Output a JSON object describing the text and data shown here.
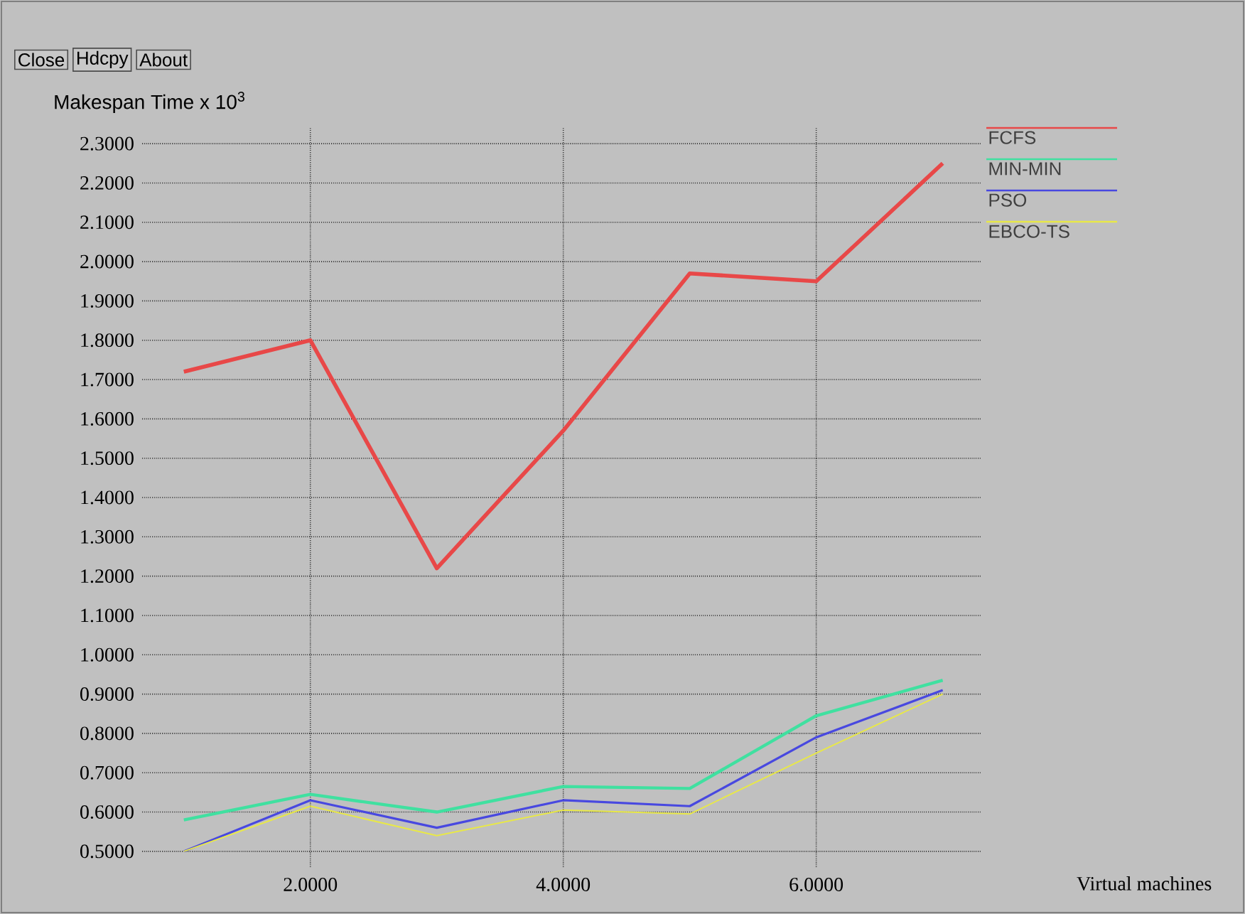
{
  "chart_data": {
    "type": "line",
    "ylabel": "Makespan Time x 10$^{3}$",
    "xlabel": "Virtual machines",
    "annotations": [
      "Close",
      "Hdcpy",
      "About"
    ],
    "x": [
      1,
      2,
      3,
      4,
      5,
      6,
      7
    ],
    "series": [
      {
        "name": "FCFS",
        "color": "#e84848",
        "values": [
          1.72,
          1.8,
          1.22,
          1.57,
          1.97,
          1.95,
          2.25
        ]
      },
      {
        "name": "MIN-MIN",
        "color": "#40e0a0",
        "values": [
          0.58,
          0.645,
          0.6,
          0.665,
          0.66,
          0.845,
          0.935
        ]
      },
      {
        "name": "PSO",
        "color": "#4848e0",
        "values": [
          0.5,
          0.63,
          0.56,
          0.63,
          0.615,
          0.79,
          0.91
        ]
      },
      {
        "name": "EBCO-TS",
        "color": "#e8e848",
        "values": [
          0.5,
          0.615,
          0.54,
          0.605,
          0.595,
          0.75,
          0.9
        ]
      }
    ],
    "xlim": [
      0.67,
      7.3
    ],
    "ylim": [
      0.46,
      2.34
    ],
    "xticks": [
      {
        "value": 2,
        "label": "2.0000"
      },
      {
        "value": 4,
        "label": "4.0000"
      },
      {
        "value": 6,
        "label": "6.0000"
      }
    ],
    "yticks": [
      {
        "value": 0.5,
        "label": "0.5000"
      },
      {
        "value": 0.6,
        "label": "0.6000"
      },
      {
        "value": 0.7,
        "label": "0.7000"
      },
      {
        "value": 0.8,
        "label": "0.8000"
      },
      {
        "value": 0.9,
        "label": "0.9000"
      },
      {
        "value": 1.0,
        "label": "1.0000"
      },
      {
        "value": 1.1,
        "label": "1.1000"
      },
      {
        "value": 1.2,
        "label": "1.2000"
      },
      {
        "value": 1.3,
        "label": "1.3000"
      },
      {
        "value": 1.4,
        "label": "1.4000"
      },
      {
        "value": 1.5,
        "label": "1.5000"
      },
      {
        "value": 1.6,
        "label": "1.6000"
      },
      {
        "value": 1.7,
        "label": "1.7000"
      },
      {
        "value": 1.8,
        "label": "1.8000"
      },
      {
        "value": 1.9,
        "label": "1.9000"
      },
      {
        "value": 2.0,
        "label": "2.0000"
      },
      {
        "value": 2.1,
        "label": "2.1000"
      },
      {
        "value": 2.2,
        "label": "2.2000"
      },
      {
        "value": 2.3,
        "label": "2.3000"
      }
    ],
    "grid": true,
    "legend": "top right",
    "marker": "none",
    "line_style": "solid"
  }
}
